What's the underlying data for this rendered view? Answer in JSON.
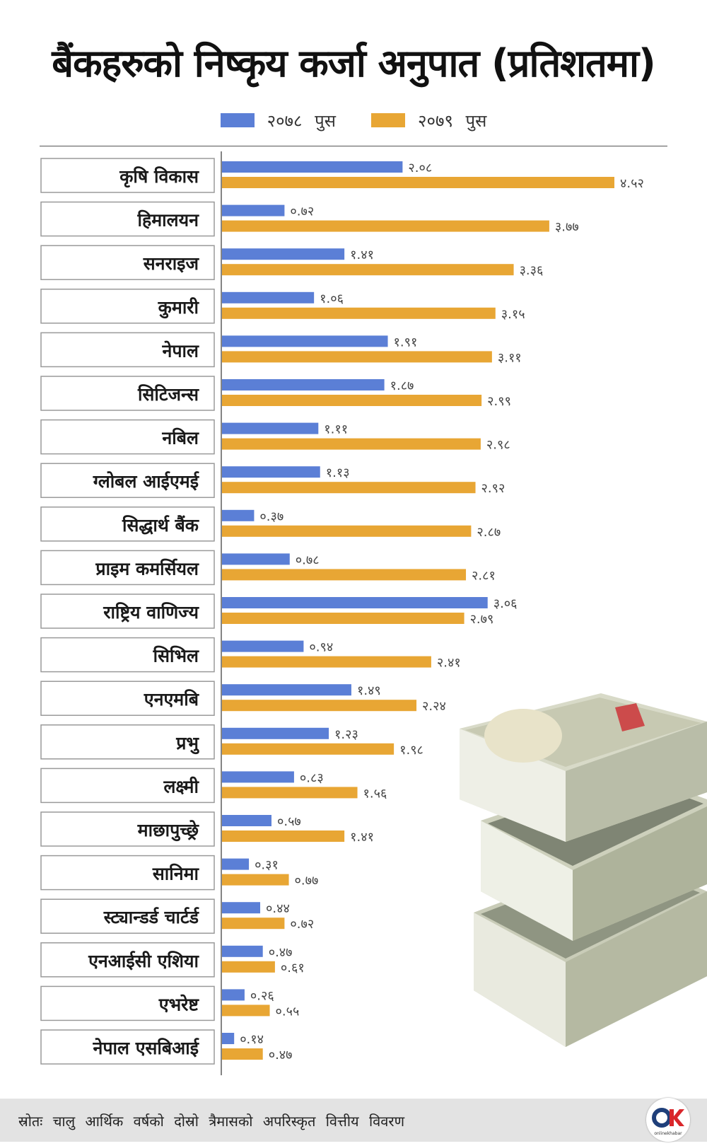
{
  "title": "बैंकहरुको निष्कृय कर्जा अनुपात (प्रतिशतमा)",
  "source": "स्रोतः चालु आर्थिक वर्षको दोस्रो त्रैमासको अपरिस्कृत वित्तीय विवरण",
  "colors": {
    "series1": "#5b7fd6",
    "series2": "#e8a634"
  },
  "logo": {
    "icon": "onlinekhabar-logo",
    "text": "OK"
  },
  "chart_data": {
    "type": "bar",
    "orientation": "horizontal",
    "title": "बैंकहरुको निष्कृय कर्जा अनुपात (प्रतिशतमा)",
    "xlabel": "",
    "ylabel": "",
    "xlim": [
      0,
      4.52
    ],
    "grid": false,
    "legend": "top-center",
    "categories": [
      "कृषि विकास",
      "हिमालयन",
      "सनराइज",
      "कुमारी",
      "नेपाल",
      "सिटिजन्स",
      "नबिल",
      "ग्लोबल आईएमई",
      "सिद्धार्थ बैंक",
      "प्राइम कमर्सियल",
      "राष्ट्रिय वाणिज्य",
      "सिभिल",
      "एनएमबि",
      "प्रभु",
      "लक्ष्मी",
      "माछापुच्छ्रे",
      "सानिमा",
      "स्ट्यान्डर्ड चार्टर्ड",
      "एनआईसी एशिया",
      "एभरेष्ट",
      "नेपाल एसबिआई"
    ],
    "series": [
      {
        "name": "२०७८ पुस",
        "values": [
          2.08,
          0.72,
          1.41,
          1.06,
          1.91,
          1.87,
          1.11,
          1.13,
          0.37,
          0.78,
          3.06,
          0.94,
          1.49,
          1.23,
          0.83,
          0.57,
          0.31,
          0.44,
          0.47,
          0.26,
          0.14
        ],
        "labels": [
          "२.०८",
          "०.७२",
          "१.४१",
          "१.०६",
          "१.९१",
          "१.८७",
          "१.११",
          "१.१३",
          "०.३७",
          "०.७८",
          "३.०६",
          "०.९४",
          "१.४९",
          "१.२३",
          "०.८३",
          "०.५७",
          "०.३१",
          "०.४४",
          "०.४७",
          "०.२६",
          "०.१४"
        ]
      },
      {
        "name": "२०७९ पुस",
        "values": [
          4.52,
          3.77,
          3.36,
          3.15,
          3.11,
          2.99,
          2.98,
          2.92,
          2.87,
          2.81,
          2.79,
          2.41,
          2.24,
          1.98,
          1.56,
          1.41,
          0.77,
          0.72,
          0.61,
          0.55,
          0.47
        ],
        "labels": [
          "४.५२",
          "३.७७",
          "३.३६",
          "३.१५",
          "३.११",
          "२.९९",
          "२.९८",
          "२.९२",
          "२.८७",
          "२.८१",
          "२.७९",
          "२.४१",
          "२.२४",
          "१.९८",
          "१.५६",
          "१.४१",
          "०.७७",
          "०.७२",
          "०.६१",
          "०.५५",
          "०.४७"
        ]
      }
    ]
  }
}
